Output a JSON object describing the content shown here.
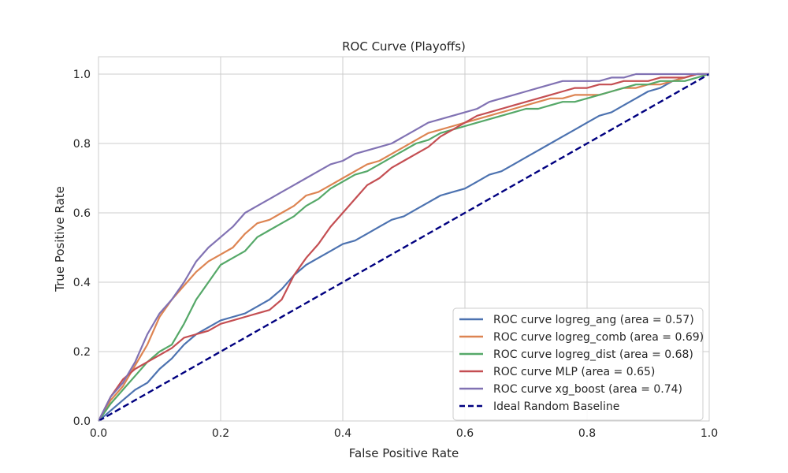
{
  "chart_data": {
    "type": "line",
    "title": "ROC Curve (Playoffs)",
    "xlabel": "False Positive Rate",
    "ylabel": "True Positive Rate",
    "xlim": [
      0.0,
      1.0
    ],
    "ylim": [
      0.0,
      1.05
    ],
    "xticks": [
      "0.0",
      "0.2",
      "0.4",
      "0.6",
      "0.8",
      "1.0"
    ],
    "yticks": [
      "0.0",
      "0.2",
      "0.4",
      "0.6",
      "0.8",
      "1.0"
    ],
    "xtick_values": [
      0,
      0.2,
      0.4,
      0.6,
      0.8,
      1.0
    ],
    "ytick_values": [
      0,
      0.2,
      0.4,
      0.6,
      0.8,
      1.0
    ],
    "grid": true,
    "legend_position": "lower-right",
    "series": [
      {
        "name": "ROC curve logreg_ang (area = 0.57)",
        "color": "#4c72b0",
        "dash": false,
        "points": [
          [
            0,
            0
          ],
          [
            0.02,
            0.03
          ],
          [
            0.04,
            0.06
          ],
          [
            0.06,
            0.09
          ],
          [
            0.08,
            0.11
          ],
          [
            0.1,
            0.15
          ],
          [
            0.12,
            0.18
          ],
          [
            0.14,
            0.22
          ],
          [
            0.16,
            0.25
          ],
          [
            0.18,
            0.27
          ],
          [
            0.2,
            0.29
          ],
          [
            0.22,
            0.3
          ],
          [
            0.24,
            0.31
          ],
          [
            0.26,
            0.33
          ],
          [
            0.28,
            0.35
          ],
          [
            0.3,
            0.38
          ],
          [
            0.32,
            0.42
          ],
          [
            0.34,
            0.45
          ],
          [
            0.36,
            0.47
          ],
          [
            0.38,
            0.49
          ],
          [
            0.4,
            0.51
          ],
          [
            0.42,
            0.52
          ],
          [
            0.44,
            0.54
          ],
          [
            0.46,
            0.56
          ],
          [
            0.48,
            0.58
          ],
          [
            0.5,
            0.59
          ],
          [
            0.52,
            0.61
          ],
          [
            0.54,
            0.63
          ],
          [
            0.56,
            0.65
          ],
          [
            0.58,
            0.66
          ],
          [
            0.6,
            0.67
          ],
          [
            0.62,
            0.69
          ],
          [
            0.64,
            0.71
          ],
          [
            0.66,
            0.72
          ],
          [
            0.68,
            0.74
          ],
          [
            0.7,
            0.76
          ],
          [
            0.72,
            0.78
          ],
          [
            0.74,
            0.8
          ],
          [
            0.76,
            0.82
          ],
          [
            0.78,
            0.84
          ],
          [
            0.8,
            0.86
          ],
          [
            0.82,
            0.88
          ],
          [
            0.84,
            0.89
          ],
          [
            0.86,
            0.91
          ],
          [
            0.88,
            0.93
          ],
          [
            0.9,
            0.95
          ],
          [
            0.92,
            0.96
          ],
          [
            0.94,
            0.98
          ],
          [
            0.96,
            0.99
          ],
          [
            0.98,
            1.0
          ],
          [
            1.0,
            1.0
          ]
        ]
      },
      {
        "name": "ROC curve logreg_comb (area = 0.69)",
        "color": "#dd8452",
        "dash": false,
        "points": [
          [
            0,
            0
          ],
          [
            0.02,
            0.06
          ],
          [
            0.04,
            0.1
          ],
          [
            0.06,
            0.16
          ],
          [
            0.08,
            0.22
          ],
          [
            0.1,
            0.3
          ],
          [
            0.12,
            0.35
          ],
          [
            0.14,
            0.39
          ],
          [
            0.16,
            0.43
          ],
          [
            0.18,
            0.46
          ],
          [
            0.2,
            0.48
          ],
          [
            0.22,
            0.5
          ],
          [
            0.24,
            0.54
          ],
          [
            0.26,
            0.57
          ],
          [
            0.28,
            0.58
          ],
          [
            0.3,
            0.6
          ],
          [
            0.32,
            0.62
          ],
          [
            0.34,
            0.65
          ],
          [
            0.36,
            0.66
          ],
          [
            0.38,
            0.68
          ],
          [
            0.4,
            0.7
          ],
          [
            0.42,
            0.72
          ],
          [
            0.44,
            0.74
          ],
          [
            0.46,
            0.75
          ],
          [
            0.48,
            0.77
          ],
          [
            0.5,
            0.79
          ],
          [
            0.52,
            0.81
          ],
          [
            0.54,
            0.83
          ],
          [
            0.56,
            0.84
          ],
          [
            0.58,
            0.85
          ],
          [
            0.6,
            0.86
          ],
          [
            0.62,
            0.87
          ],
          [
            0.64,
            0.88
          ],
          [
            0.66,
            0.89
          ],
          [
            0.68,
            0.9
          ],
          [
            0.7,
            0.91
          ],
          [
            0.72,
            0.92
          ],
          [
            0.74,
            0.93
          ],
          [
            0.76,
            0.93
          ],
          [
            0.78,
            0.94
          ],
          [
            0.8,
            0.94
          ],
          [
            0.82,
            0.94
          ],
          [
            0.84,
            0.95
          ],
          [
            0.86,
            0.96
          ],
          [
            0.88,
            0.96
          ],
          [
            0.9,
            0.97
          ],
          [
            0.92,
            0.97
          ],
          [
            0.94,
            0.98
          ],
          [
            0.96,
            0.99
          ],
          [
            0.98,
            1.0
          ],
          [
            1.0,
            1.0
          ]
        ]
      },
      {
        "name": "ROC curve logreg_dist (area = 0.68)",
        "color": "#55a868",
        "dash": false,
        "points": [
          [
            0,
            0
          ],
          [
            0.02,
            0.05
          ],
          [
            0.04,
            0.09
          ],
          [
            0.06,
            0.13
          ],
          [
            0.08,
            0.17
          ],
          [
            0.1,
            0.2
          ],
          [
            0.12,
            0.22
          ],
          [
            0.14,
            0.28
          ],
          [
            0.16,
            0.35
          ],
          [
            0.18,
            0.4
          ],
          [
            0.2,
            0.45
          ],
          [
            0.22,
            0.47
          ],
          [
            0.24,
            0.49
          ],
          [
            0.26,
            0.53
          ],
          [
            0.28,
            0.55
          ],
          [
            0.3,
            0.57
          ],
          [
            0.32,
            0.59
          ],
          [
            0.34,
            0.62
          ],
          [
            0.36,
            0.64
          ],
          [
            0.38,
            0.67
          ],
          [
            0.4,
            0.69
          ],
          [
            0.42,
            0.71
          ],
          [
            0.44,
            0.72
          ],
          [
            0.46,
            0.74
          ],
          [
            0.48,
            0.76
          ],
          [
            0.5,
            0.78
          ],
          [
            0.52,
            0.8
          ],
          [
            0.54,
            0.81
          ],
          [
            0.56,
            0.83
          ],
          [
            0.58,
            0.84
          ],
          [
            0.6,
            0.85
          ],
          [
            0.62,
            0.86
          ],
          [
            0.64,
            0.87
          ],
          [
            0.66,
            0.88
          ],
          [
            0.68,
            0.89
          ],
          [
            0.7,
            0.9
          ],
          [
            0.72,
            0.9
          ],
          [
            0.74,
            0.91
          ],
          [
            0.76,
            0.92
          ],
          [
            0.78,
            0.92
          ],
          [
            0.8,
            0.93
          ],
          [
            0.82,
            0.94
          ],
          [
            0.84,
            0.95
          ],
          [
            0.86,
            0.96
          ],
          [
            0.88,
            0.97
          ],
          [
            0.9,
            0.97
          ],
          [
            0.92,
            0.98
          ],
          [
            0.94,
            0.98
          ],
          [
            0.96,
            0.98
          ],
          [
            0.98,
            0.99
          ],
          [
            1.0,
            1.0
          ]
        ]
      },
      {
        "name": "ROC curve MLP (area = 0.65)",
        "color": "#c44e52",
        "dash": false,
        "points": [
          [
            0,
            0
          ],
          [
            0.02,
            0.07
          ],
          [
            0.04,
            0.12
          ],
          [
            0.06,
            0.15
          ],
          [
            0.08,
            0.17
          ],
          [
            0.1,
            0.19
          ],
          [
            0.12,
            0.21
          ],
          [
            0.14,
            0.24
          ],
          [
            0.16,
            0.25
          ],
          [
            0.18,
            0.26
          ],
          [
            0.2,
            0.28
          ],
          [
            0.22,
            0.29
          ],
          [
            0.24,
            0.3
          ],
          [
            0.26,
            0.31
          ],
          [
            0.28,
            0.32
          ],
          [
            0.3,
            0.35
          ],
          [
            0.32,
            0.42
          ],
          [
            0.34,
            0.47
          ],
          [
            0.36,
            0.51
          ],
          [
            0.38,
            0.56
          ],
          [
            0.4,
            0.6
          ],
          [
            0.42,
            0.64
          ],
          [
            0.44,
            0.68
          ],
          [
            0.46,
            0.7
          ],
          [
            0.48,
            0.73
          ],
          [
            0.5,
            0.75
          ],
          [
            0.52,
            0.77
          ],
          [
            0.54,
            0.79
          ],
          [
            0.56,
            0.82
          ],
          [
            0.58,
            0.84
          ],
          [
            0.6,
            0.86
          ],
          [
            0.62,
            0.88
          ],
          [
            0.64,
            0.89
          ],
          [
            0.66,
            0.9
          ],
          [
            0.68,
            0.91
          ],
          [
            0.7,
            0.92
          ],
          [
            0.72,
            0.93
          ],
          [
            0.74,
            0.94
          ],
          [
            0.76,
            0.95
          ],
          [
            0.78,
            0.96
          ],
          [
            0.8,
            0.96
          ],
          [
            0.82,
            0.97
          ],
          [
            0.84,
            0.97
          ],
          [
            0.86,
            0.98
          ],
          [
            0.88,
            0.98
          ],
          [
            0.9,
            0.98
          ],
          [
            0.92,
            0.99
          ],
          [
            0.94,
            0.99
          ],
          [
            0.96,
            0.99
          ],
          [
            0.98,
            1.0
          ],
          [
            1.0,
            1.0
          ]
        ]
      },
      {
        "name": "ROC curve xg_boost (area = 0.74)",
        "color": "#8172b3",
        "dash": false,
        "points": [
          [
            0,
            0
          ],
          [
            0.02,
            0.07
          ],
          [
            0.04,
            0.11
          ],
          [
            0.06,
            0.17
          ],
          [
            0.08,
            0.25
          ],
          [
            0.1,
            0.31
          ],
          [
            0.12,
            0.35
          ],
          [
            0.14,
            0.4
          ],
          [
            0.16,
            0.46
          ],
          [
            0.18,
            0.5
          ],
          [
            0.2,
            0.53
          ],
          [
            0.22,
            0.56
          ],
          [
            0.24,
            0.6
          ],
          [
            0.26,
            0.62
          ],
          [
            0.28,
            0.64
          ],
          [
            0.3,
            0.66
          ],
          [
            0.32,
            0.68
          ],
          [
            0.34,
            0.7
          ],
          [
            0.36,
            0.72
          ],
          [
            0.38,
            0.74
          ],
          [
            0.4,
            0.75
          ],
          [
            0.42,
            0.77
          ],
          [
            0.44,
            0.78
          ],
          [
            0.46,
            0.79
          ],
          [
            0.48,
            0.8
          ],
          [
            0.5,
            0.82
          ],
          [
            0.52,
            0.84
          ],
          [
            0.54,
            0.86
          ],
          [
            0.56,
            0.87
          ],
          [
            0.58,
            0.88
          ],
          [
            0.6,
            0.89
          ],
          [
            0.62,
            0.9
          ],
          [
            0.64,
            0.92
          ],
          [
            0.66,
            0.93
          ],
          [
            0.68,
            0.94
          ],
          [
            0.7,
            0.95
          ],
          [
            0.72,
            0.96
          ],
          [
            0.74,
            0.97
          ],
          [
            0.76,
            0.98
          ],
          [
            0.78,
            0.98
          ],
          [
            0.8,
            0.98
          ],
          [
            0.82,
            0.98
          ],
          [
            0.84,
            0.99
          ],
          [
            0.86,
            0.99
          ],
          [
            0.88,
            1.0
          ],
          [
            0.9,
            1.0
          ],
          [
            0.92,
            1.0
          ],
          [
            0.94,
            1.0
          ],
          [
            0.96,
            1.0
          ],
          [
            0.98,
            1.0
          ],
          [
            1.0,
            1.0
          ]
        ]
      },
      {
        "name": "Ideal Random Baseline",
        "color": "#000080",
        "dash": true,
        "points": [
          [
            0,
            0
          ],
          [
            1,
            1
          ]
        ]
      }
    ]
  }
}
